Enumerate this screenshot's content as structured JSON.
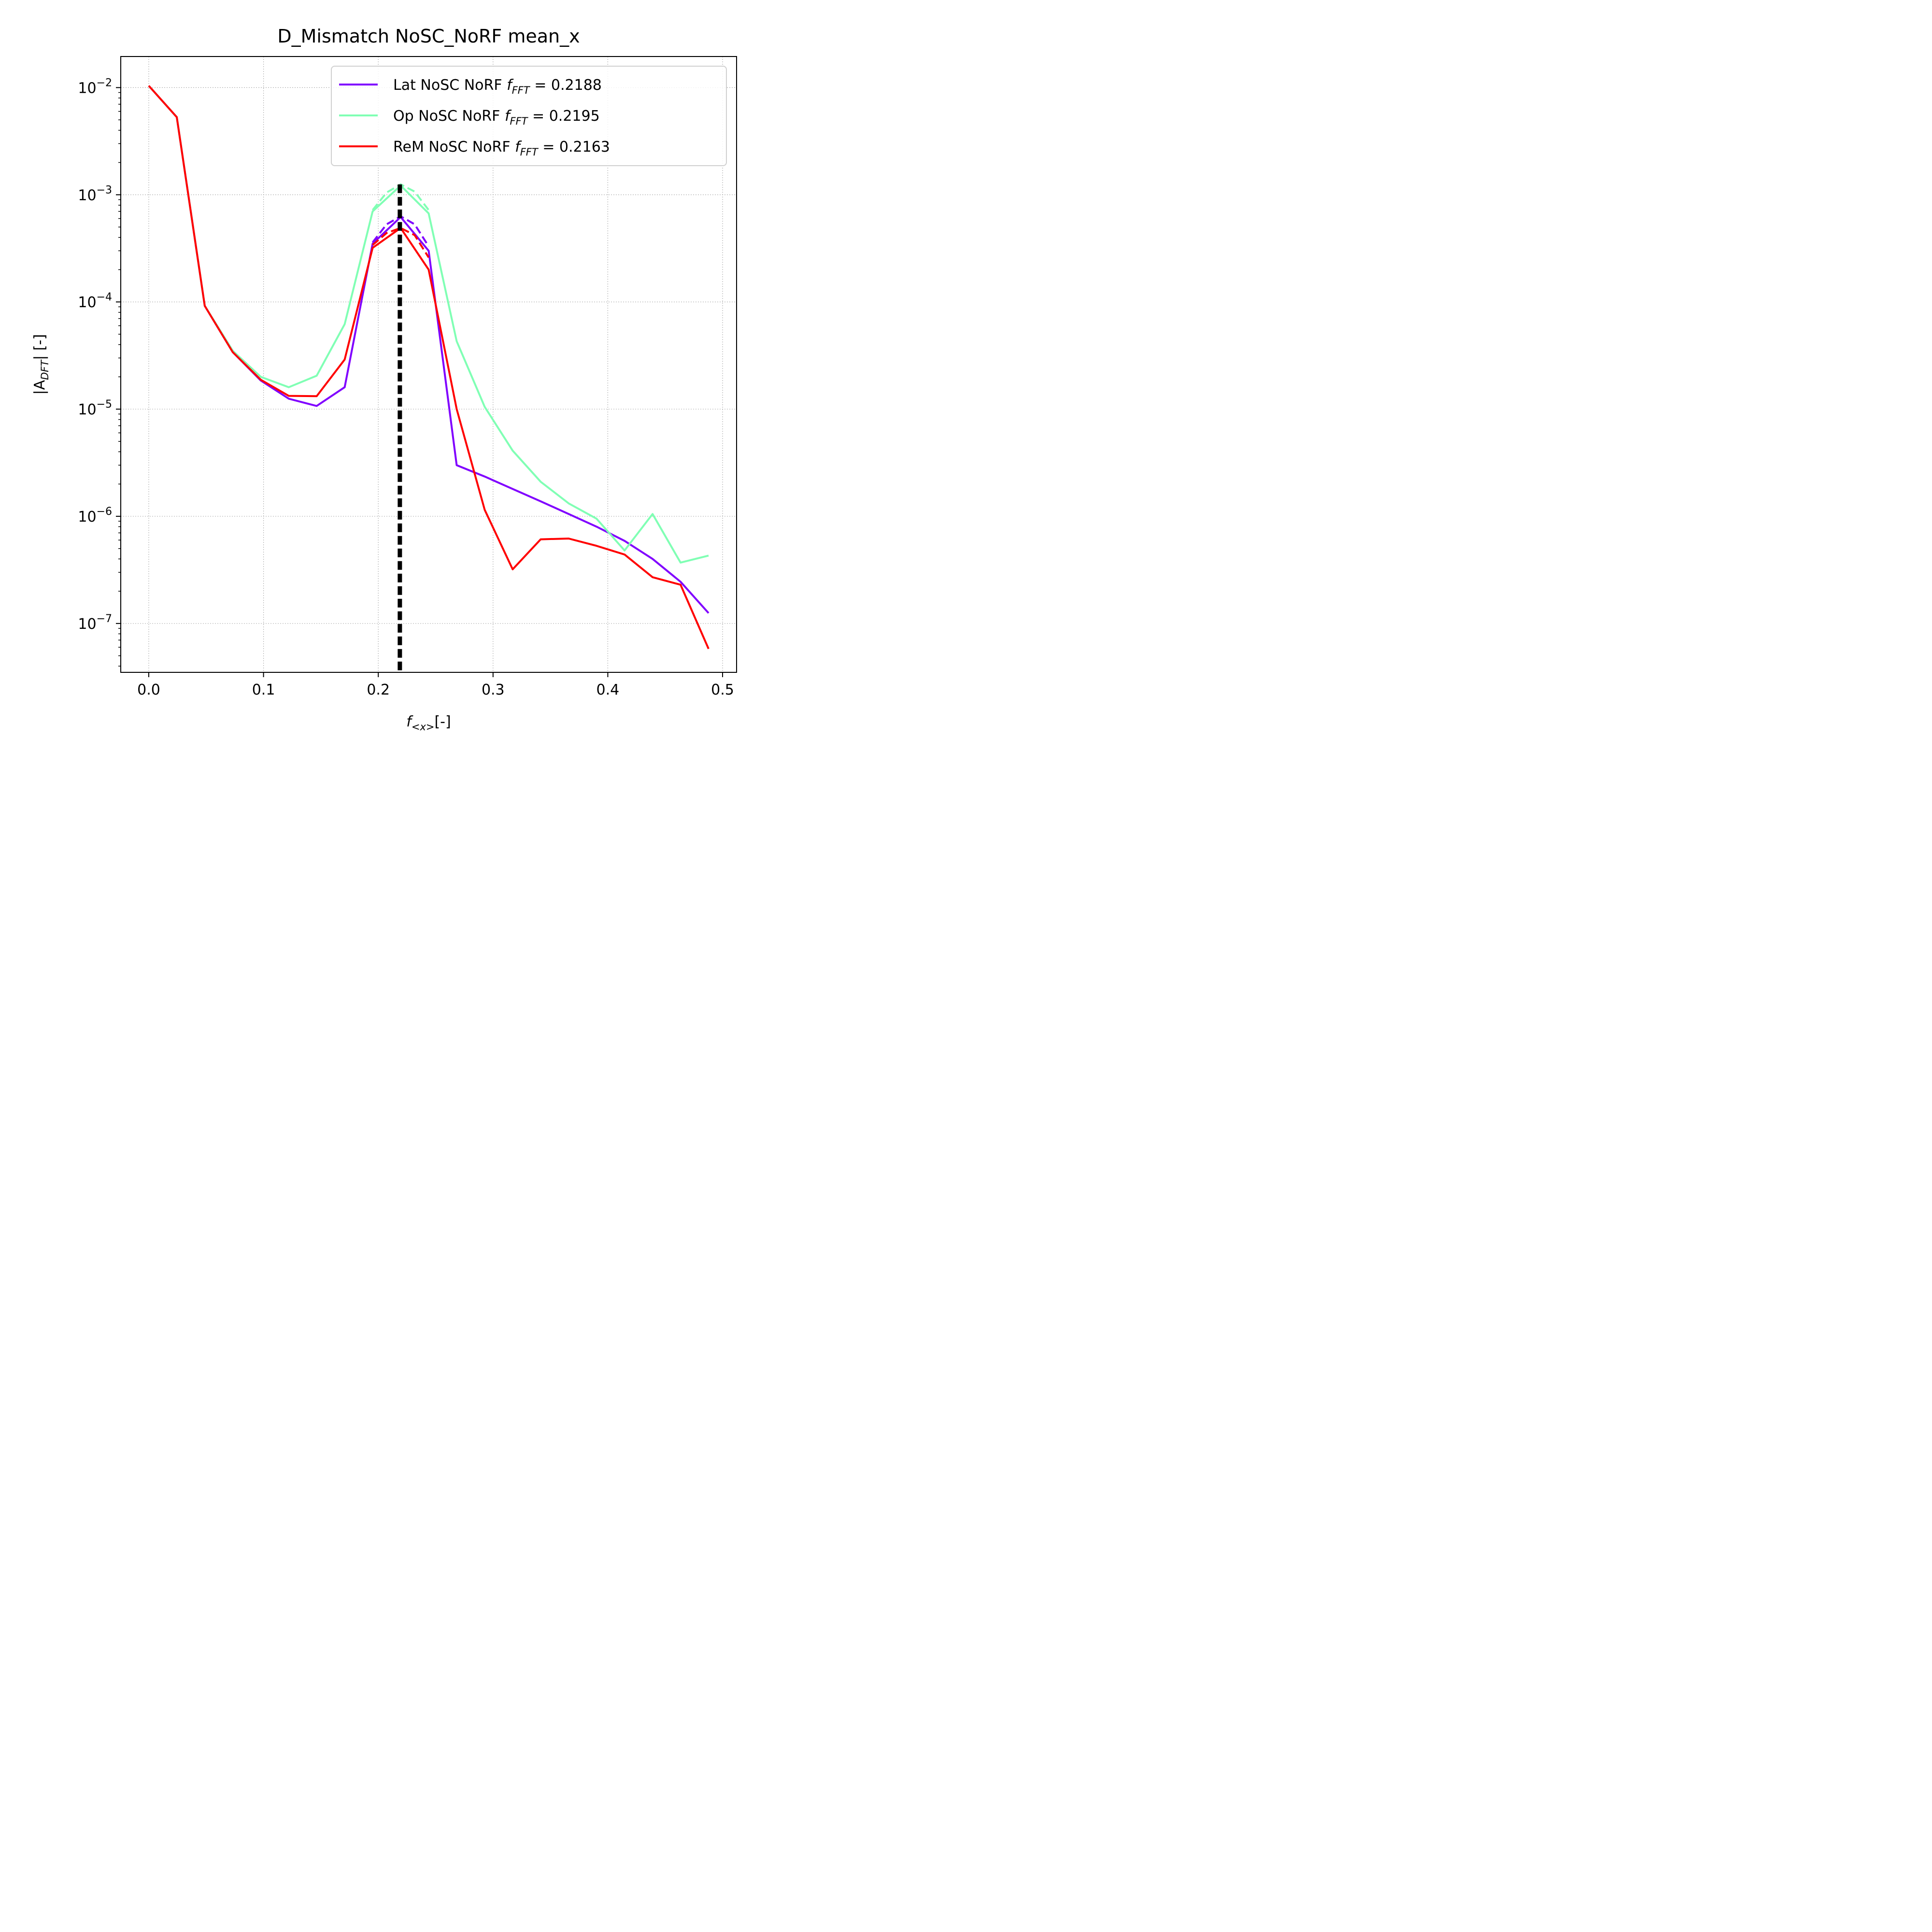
{
  "chart_data": {
    "type": "line",
    "title": "D_Mismatch NoSC_NoRF mean_x",
    "xlabel_main": "f",
    "xlabel_sub": "<x>",
    "xlabel_unit": "[-]",
    "ylabel_pre": "|A",
    "ylabel_sub": "DFT",
    "ylabel_post": "| [-]",
    "xlim": [
      -0.0244,
      0.5122
    ],
    "ylim": [
      3.5e-08,
      0.0195
    ],
    "yscale": "log",
    "grid": true,
    "legend_position": "upper right",
    "x_ticks": [
      {
        "value": 0.0,
        "label": "0.0"
      },
      {
        "value": 0.1,
        "label": "0.1"
      },
      {
        "value": 0.2,
        "label": "0.2"
      },
      {
        "value": 0.3,
        "label": "0.3"
      },
      {
        "value": 0.4,
        "label": "0.4"
      },
      {
        "value": 0.5,
        "label": "0.5"
      }
    ],
    "y_ticks": [
      {
        "value": 0.01,
        "base": "10",
        "exp": "−2"
      },
      {
        "value": 0.001,
        "base": "10",
        "exp": "−3"
      },
      {
        "value": 0.0001,
        "base": "10",
        "exp": "−4"
      },
      {
        "value": 1e-05,
        "base": "10",
        "exp": "−5"
      },
      {
        "value": 1e-06,
        "base": "10",
        "exp": "−6"
      },
      {
        "value": 1e-07,
        "base": "10",
        "exp": "−7"
      }
    ],
    "series": [
      {
        "label_name": "Lat NoSC NoRF",
        "label_f": "f",
        "label_sub": "FFT",
        "label_eq": " =  0.2188",
        "color": "#8000ff",
        "x": [
          0.0,
          0.0244,
          0.0488,
          0.0732,
          0.0976,
          0.122,
          0.1463,
          0.1707,
          0.1951,
          0.2195,
          0.2439,
          0.2683,
          0.2927,
          0.3171,
          0.3415,
          0.3659,
          0.3902,
          0.4146,
          0.439,
          0.4634,
          0.4878
        ],
        "y": [
          0.0104,
          0.0053,
          9.2e-05,
          3.4e-05,
          1.85e-05,
          1.25e-05,
          1.07e-05,
          1.6e-05,
          0.00035,
          0.00062,
          0.0003,
          3e-06,
          2.35e-06,
          1.8e-06,
          1.38e-06,
          1.05e-06,
          8e-07,
          5.9e-07,
          4e-07,
          2.45e-07,
          1.25e-07
        ],
        "peak_fit": {
          "x": [
            0.1951,
            0.2073,
            0.2195,
            0.2317,
            0.2439
          ],
          "y": [
            0.00036,
            0.00053,
            0.00063,
            0.00053,
            0.00033
          ]
        }
      },
      {
        "label_name": "Op NoSC NoRF",
        "label_f": "f",
        "label_sub": "FFT",
        "label_eq": " =  0.2195",
        "color": "#80ffb4",
        "x": [
          0.0,
          0.0244,
          0.0488,
          0.0732,
          0.0976,
          0.122,
          0.1463,
          0.1707,
          0.1951,
          0.2195,
          0.2439,
          0.2683,
          0.2927,
          0.3171,
          0.3415,
          0.3659,
          0.3902,
          0.4146,
          0.439,
          0.4634,
          0.4878
        ],
        "y": [
          0.0104,
          0.0053,
          9.2e-05,
          3.5e-05,
          2e-05,
          1.6e-05,
          2.05e-05,
          6.2e-05,
          0.0007,
          0.00122,
          0.00067,
          4.3e-05,
          1.05e-05,
          4.1e-06,
          2.1e-06,
          1.32e-06,
          9.5e-07,
          4.8e-07,
          1.05e-06,
          3.7e-07,
          4.3e-07
        ],
        "peak_fit": {
          "x": [
            0.1951,
            0.2073,
            0.2195,
            0.2317,
            0.2439
          ],
          "y": [
            0.00072,
            0.00105,
            0.00125,
            0.00107,
            0.00072
          ]
        }
      },
      {
        "label_name": "ReM NoSC NoRF",
        "label_f": "f",
        "label_sub": "FFT",
        "label_eq": " =  0.2163",
        "color": "#ff0000",
        "x": [
          0.0,
          0.0244,
          0.0488,
          0.0732,
          0.0976,
          0.122,
          0.1463,
          0.1707,
          0.1951,
          0.2195,
          0.2439,
          0.2683,
          0.2927,
          0.3171,
          0.3415,
          0.3659,
          0.3902,
          0.4146,
          0.439,
          0.4634,
          0.4878
        ],
        "y": [
          0.0104,
          0.0053,
          9.2e-05,
          3.4e-05,
          1.88e-05,
          1.33e-05,
          1.32e-05,
          2.9e-05,
          0.00032,
          0.00049,
          0.0002,
          1e-05,
          1.15e-06,
          3.2e-07,
          6.1e-07,
          6.2e-07,
          5.3e-07,
          4.4e-07,
          2.7e-07,
          2.3e-07,
          5.8e-08
        ],
        "peak_fit": {
          "x": [
            0.1951,
            0.2073,
            0.2195,
            0.2317,
            0.2439
          ],
          "y": [
            0.00034,
            0.00044,
            0.00049,
            0.00042,
            0.00026
          ]
        }
      }
    ],
    "vline": {
      "x": 0.2188,
      "color": "#000000"
    }
  }
}
